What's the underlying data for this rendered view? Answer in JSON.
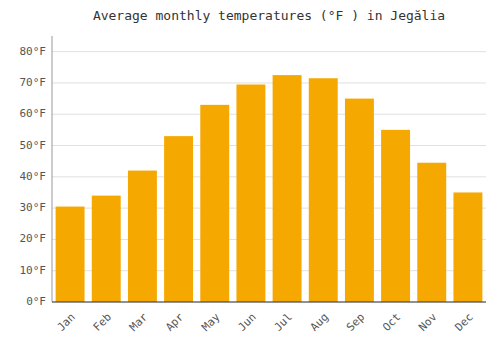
{
  "chart_data": {
    "type": "bar",
    "title": "Average monthly temperatures (°F ) in Jegălia",
    "categories": [
      "Jan",
      "Feb",
      "Mar",
      "Apr",
      "May",
      "Jun",
      "Jul",
      "Aug",
      "Sep",
      "Oct",
      "Nov",
      "Dec"
    ],
    "values": [
      30.5,
      34.0,
      42.0,
      53.0,
      63.0,
      69.5,
      72.5,
      71.5,
      65.0,
      55.0,
      44.5,
      35.0
    ],
    "color": "#F5A800",
    "ylim": [
      0,
      85
    ],
    "yticks": [
      {
        "value": 0,
        "label": "0°F"
      },
      {
        "value": 10,
        "label": "10°F"
      },
      {
        "value": 20,
        "label": "20°F"
      },
      {
        "value": 30,
        "label": "30°F"
      },
      {
        "value": 40,
        "label": "40°F"
      },
      {
        "value": 50,
        "label": "50°F"
      },
      {
        "value": 60,
        "label": "60°F"
      },
      {
        "value": 70,
        "label": "70°F"
      },
      {
        "value": 80,
        "label": "80°F"
      }
    ],
    "grid": true
  }
}
